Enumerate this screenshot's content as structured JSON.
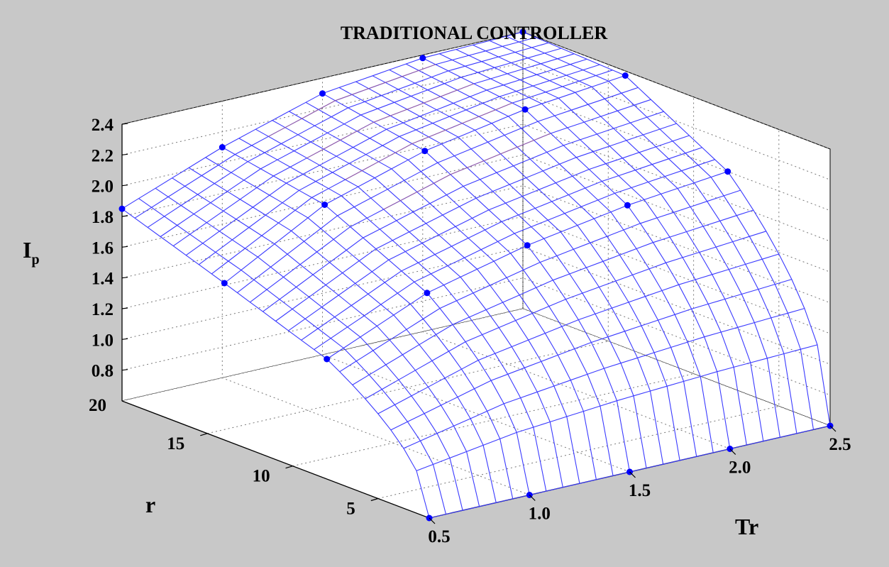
{
  "chart_data": {
    "type": "surface",
    "title": "TRADITIONAL CONTROLLER",
    "zlabel": "I",
    "zlabel_subscript": "p",
    "xlabel": "Tr",
    "ylabel": "r",
    "xlim": [
      0.5,
      2.5
    ],
    "ylim": [
      2,
      20
    ],
    "zlim": [
      0.6,
      2.4
    ],
    "x_ticks": [
      "0.5",
      "1.0",
      "1.5",
      "2.0",
      "2.5"
    ],
    "y_ticks": [
      "5",
      "10",
      "15",
      "20"
    ],
    "z_ticks": [
      "0.8",
      "1.0",
      "1.2",
      "1.4",
      "1.6",
      "1.8",
      "2.0",
      "2.2",
      "2.4"
    ],
    "grid": true,
    "surface_color": "#3a3aff",
    "highlight_color": "#ff7a2a",
    "marker_color": "#0000ff",
    "sample_points": [
      {
        "Tr": 0.5,
        "r": 2,
        "Ip": 0.6
      },
      {
        "Tr": 0.5,
        "r": 8,
        "Ip": 1.38
      },
      {
        "Tr": 0.5,
        "r": 14,
        "Ip": 1.62
      },
      {
        "Tr": 0.5,
        "r": 20,
        "Ip": 1.85
      },
      {
        "Tr": 1.0,
        "r": 2,
        "Ip": 0.6
      },
      {
        "Tr": 1.0,
        "r": 8,
        "Ip": 1.66
      },
      {
        "Tr": 1.0,
        "r": 14,
        "Ip": 1.98
      },
      {
        "Tr": 1.0,
        "r": 20,
        "Ip": 2.1
      },
      {
        "Tr": 1.5,
        "r": 2,
        "Ip": 0.6
      },
      {
        "Tr": 1.5,
        "r": 8,
        "Ip": 1.82
      },
      {
        "Tr": 1.5,
        "r": 14,
        "Ip": 2.18
      },
      {
        "Tr": 1.5,
        "r": 20,
        "Ip": 2.3
      },
      {
        "Tr": 2.0,
        "r": 2,
        "Ip": 0.6
      },
      {
        "Tr": 2.0,
        "r": 8,
        "Ip": 1.93
      },
      {
        "Tr": 2.0,
        "r": 14,
        "Ip": 2.3
      },
      {
        "Tr": 2.0,
        "r": 20,
        "Ip": 2.38
      },
      {
        "Tr": 2.5,
        "r": 2,
        "Ip": 0.6
      },
      {
        "Tr": 2.5,
        "r": 8,
        "Ip": 2.0
      },
      {
        "Tr": 2.5,
        "r": 14,
        "Ip": 2.37
      },
      {
        "Tr": 2.5,
        "r": 20,
        "Ip": 2.4
      }
    ]
  }
}
